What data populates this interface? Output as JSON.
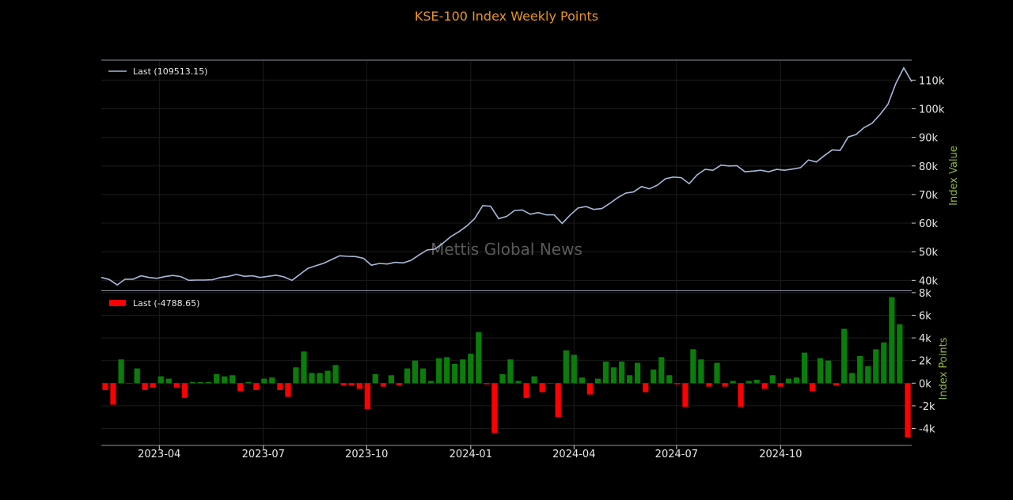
{
  "chart_data": {
    "type": "line",
    "title": "KSE-100 Index Weekly Points",
    "watermark": "Mettis Global News",
    "title_color": "#e8961e",
    "ylabel_color": "#8fb83a",
    "line_color": "#a8b8d8",
    "up_color": "#0a7d0a",
    "down_color": "#ff0000",
    "x_ticks": [
      "2023-04",
      "2023-07",
      "2023-10",
      "2024-01",
      "2024-04",
      "2024-07",
      "2024-10"
    ],
    "top_panel": {
      "type": "line",
      "ylabel": "Index Value",
      "legend": "Last (109513.15)",
      "legend_position": "top-left",
      "ylim": [
        36500,
        117000
      ],
      "y_ticks": [
        40000,
        50000,
        60000,
        70000,
        80000,
        90000,
        100000,
        110000
      ],
      "y_tick_labels": [
        "40k",
        "50k",
        "60k",
        "70k",
        "80k",
        "90k",
        "100k",
        "110k"
      ],
      "values": [
        41000,
        40300,
        38400,
        40400,
        40400,
        41600,
        41000,
        40700,
        41300,
        41700,
        41300,
        40000,
        40100,
        40100,
        40200,
        41000,
        41400,
        42100,
        41400,
        41600,
        41000,
        41400,
        41800,
        41200,
        40000,
        42100,
        44200,
        45100,
        46000,
        47300,
        48600,
        48400,
        48300,
        47700,
        45300,
        45900,
        45700,
        46300,
        46100,
        47000,
        48900,
        50600,
        50900,
        53000,
        55300,
        57000,
        59000,
        61600,
        66100,
        65900,
        61600,
        62300,
        64400,
        64600,
        63100,
        63700,
        62900,
        62900,
        59900,
        62800,
        65300,
        65800,
        64800,
        65100,
        66900,
        68900,
        70500,
        70900,
        72800,
        72000,
        73300,
        75500,
        76100,
        75900,
        73800,
        76900,
        78800,
        78500,
        80300,
        80000,
        80100,
        78000,
        78200,
        78500,
        78000,
        78800,
        78500,
        78900,
        79400,
        82100,
        81400,
        83600,
        85600,
        85400,
        90100,
        91000,
        93400,
        94900,
        97900,
        101500,
        108800,
        114300,
        109513
      ]
    },
    "bottom_panel": {
      "type": "bar",
      "ylabel": "Index Points",
      "legend": "Last (-4788.65)",
      "legend_position": "top-left",
      "ylim": [
        -5500,
        8200
      ],
      "y_ticks": [
        -4000,
        -2000,
        0,
        2000,
        4000,
        6000,
        8000
      ],
      "y_tick_labels": [
        "-4k",
        "-2k",
        "0k",
        "2k",
        "4k",
        "6k",
        "8k"
      ],
      "values": [
        -600,
        -1900,
        2100,
        0,
        1300,
        -600,
        -400,
        600,
        400,
        -400,
        -1300,
        100,
        100,
        100,
        800,
        600,
        700,
        -700,
        100,
        -600,
        400,
        500,
        -600,
        -1200,
        1400,
        2800,
        900,
        900,
        1100,
        1600,
        -200,
        -200,
        -500,
        -2300,
        800,
        -300,
        700,
        -200,
        1300,
        2000,
        1300,
        200,
        2200,
        2300,
        1700,
        2100,
        2600,
        4500,
        -100,
        -4400,
        800,
        2100,
        200,
        -1300,
        600,
        -800,
        0,
        -3000,
        2900,
        2500,
        500,
        -1000,
        400,
        1900,
        1400,
        1900,
        700,
        1800,
        -800,
        1200,
        2300,
        700,
        -100,
        -2100,
        3000,
        2100,
        -300,
        1800,
        -300,
        200,
        -2100,
        200,
        300,
        -500,
        700,
        -300,
        400,
        500,
        2700,
        -700,
        2200,
        2000,
        -200,
        4800,
        900,
        2400,
        1500,
        3000,
        3600,
        7600,
        5200,
        -4789
      ]
    }
  }
}
